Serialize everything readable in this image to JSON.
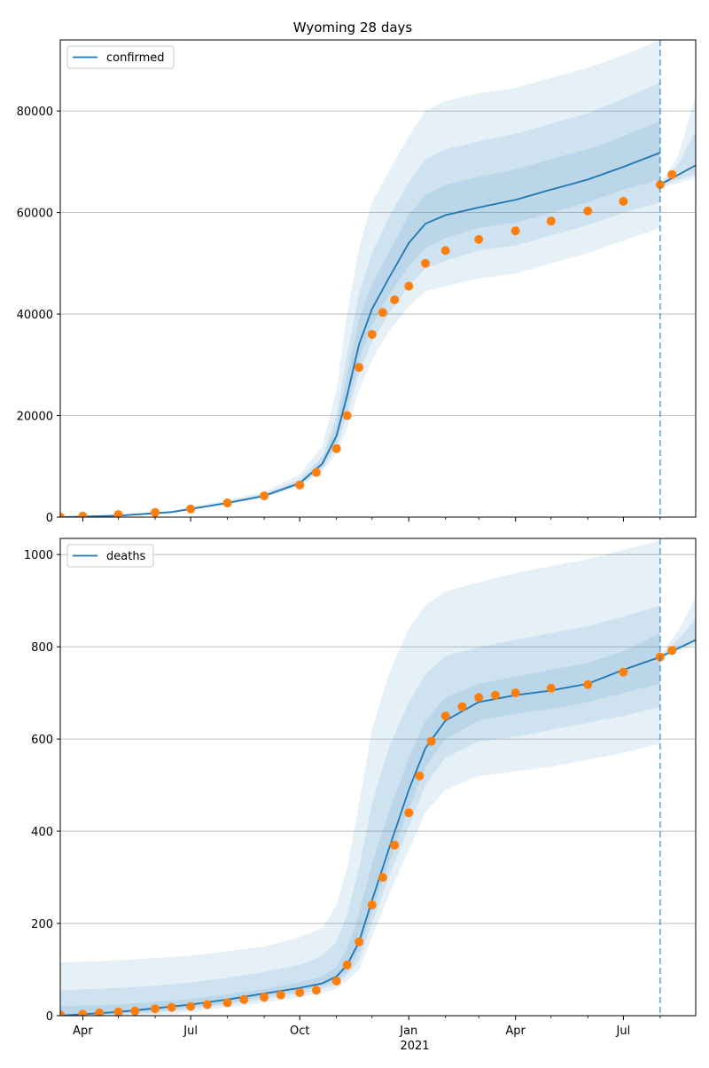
{
  "chart_data": [
    {
      "type": "line",
      "title": "Wyoming 28 days",
      "legend": {
        "entries": [
          "confirmed"
        ],
        "placement": "top-left"
      },
      "grid": {
        "y": true,
        "x": false
      },
      "x_axis": {
        "type": "date",
        "range": [
          "2020-03-13",
          "2021-08-31"
        ]
      },
      "ylim": [
        0,
        94000
      ],
      "yticks": [
        0,
        20000,
        40000,
        60000,
        80000
      ],
      "forecast_start": "2021-08-01",
      "colors": {
        "line": "#1f77b4",
        "observed": "#ff7f0e",
        "band": "#1f77b4"
      },
      "series": [
        {
          "name": "confirmed",
          "kind": "line",
          "x": [
            "2020-03-13",
            "2020-05-01",
            "2020-06-15",
            "2020-08-01",
            "2020-09-01",
            "2020-10-01",
            "2020-10-20",
            "2020-11-01",
            "2020-11-10",
            "2020-11-20",
            "2020-12-01",
            "2020-12-15",
            "2021-01-01",
            "2021-01-15",
            "2021-02-01",
            "2021-03-01",
            "2021-04-01",
            "2021-05-01",
            "2021-06-01",
            "2021-07-01",
            "2021-08-01"
          ],
          "y": [
            0,
            300,
            1000,
            2800,
            4200,
            6700,
            10500,
            16000,
            24000,
            34000,
            41000,
            47000,
            54000,
            57800,
            59500,
            61000,
            62500,
            64500,
            66500,
            69000,
            71800
          ]
        },
        {
          "name": "",
          "kind": "line",
          "tail": true,
          "x": [
            "2021-08-01",
            "2021-08-31"
          ],
          "y": [
            65500,
            69300
          ]
        },
        {
          "name": "",
          "kind": "observed",
          "x": [
            "2020-03-13",
            "2020-04-01",
            "2020-05-01",
            "2020-06-01",
            "2020-07-01",
            "2020-08-01",
            "2020-09-01",
            "2020-10-01",
            "2020-10-15",
            "2020-11-01",
            "2020-11-10",
            "2020-11-20",
            "2020-12-01",
            "2020-12-10",
            "2020-12-20",
            "2021-01-01",
            "2021-01-15",
            "2021-02-01",
            "2021-03-01",
            "2021-04-01",
            "2021-05-01",
            "2021-06-01",
            "2021-07-01",
            "2021-08-01",
            "2021-08-11"
          ],
          "y": [
            0,
            200,
            500,
            900,
            1600,
            2800,
            4200,
            6300,
            8800,
            13500,
            20000,
            29500,
            36000,
            40300,
            42800,
            45500,
            50000,
            52500,
            54700,
            56400,
            58300,
            60300,
            62200,
            65500,
            67500
          ]
        }
      ],
      "bands": [
        {
          "x": [
            "2020-03-13",
            "2020-05-01",
            "2020-06-15",
            "2020-08-01",
            "2020-09-01",
            "2020-10-01",
            "2020-10-20",
            "2020-11-01",
            "2020-11-10",
            "2020-11-20",
            "2020-12-01",
            "2020-12-15",
            "2021-01-01",
            "2021-01-15",
            "2021-02-01",
            "2021-03-01",
            "2021-04-01",
            "2021-05-01",
            "2021-06-01",
            "2021-07-01",
            "2021-08-01"
          ],
          "lower": [
            0,
            250,
            850,
            2500,
            3800,
            6100,
            9000,
            12500,
            17500,
            25000,
            31000,
            36500,
            41500,
            44500,
            45500,
            47000,
            48000,
            50000,
            52000,
            54500,
            57000
          ],
          "upper": [
            0,
            380,
            1250,
            3400,
            5000,
            8400,
            14000,
            25000,
            40000,
            53000,
            62000,
            68000,
            75000,
            80000,
            82000,
            83500,
            84500,
            86500,
            88500,
            91000,
            94000
          ]
        },
        {
          "x": [
            "2020-03-13",
            "2020-05-01",
            "2020-06-15",
            "2020-08-01",
            "2020-09-01",
            "2020-10-01",
            "2020-10-20",
            "2020-11-01",
            "2020-11-10",
            "2020-11-20",
            "2020-12-01",
            "2020-12-15",
            "2021-01-01",
            "2021-01-15",
            "2021-02-01",
            "2021-03-01",
            "2021-04-01",
            "2021-05-01",
            "2021-06-01",
            "2021-07-01",
            "2021-08-01"
          ],
          "lower": [
            0,
            270,
            900,
            2600,
            3950,
            6300,
            9500,
            13800,
            20000,
            28500,
            34500,
            40000,
            45500,
            49000,
            50500,
            52500,
            53500,
            55500,
            57500,
            60000,
            62000
          ],
          "upper": [
            0,
            340,
            1150,
            3100,
            4600,
            7500,
            12000,
            20000,
            32000,
            44000,
            52000,
            59000,
            66000,
            70500,
            72500,
            74000,
            75500,
            77500,
            79500,
            82500,
            85500
          ]
        },
        {
          "x": [
            "2020-03-13",
            "2020-05-01",
            "2020-06-15",
            "2020-08-01",
            "2020-09-01",
            "2020-10-01",
            "2020-10-20",
            "2020-11-01",
            "2020-11-10",
            "2020-11-20",
            "2020-12-01",
            "2020-12-15",
            "2021-01-01",
            "2021-01-15",
            "2021-02-01",
            "2021-03-01",
            "2021-04-01",
            "2021-05-01",
            "2021-06-01",
            "2021-07-01",
            "2021-08-01"
          ],
          "lower": [
            0,
            290,
            950,
            2700,
            4050,
            6500,
            10000,
            15000,
            22000,
            31000,
            38000,
            43500,
            49500,
            53000,
            55000,
            57000,
            58000,
            60000,
            62000,
            64500,
            66500
          ],
          "upper": [
            0,
            320,
            1080,
            2950,
            4400,
            7000,
            11200,
            18000,
            28000,
            39000,
            46000,
            52000,
            59500,
            63500,
            65500,
            67000,
            68500,
            70500,
            72500,
            75000,
            78000
          ]
        },
        {
          "tail": true,
          "x": [
            "2021-08-01",
            "2021-08-16",
            "2021-08-31"
          ],
          "lower": [
            65000,
            65800,
            66800
          ],
          "upper": [
            65500,
            71000,
            83000
          ]
        },
        {
          "tail": true,
          "x": [
            "2021-08-01",
            "2021-08-16",
            "2021-08-31"
          ],
          "lower": [
            65200,
            66500,
            67500
          ],
          "upper": [
            65500,
            69500,
            76000
          ]
        }
      ]
    },
    {
      "type": "line",
      "title": "",
      "legend": {
        "entries": [
          "deaths"
        ],
        "placement": "top-left"
      },
      "grid": {
        "y": true,
        "x": false
      },
      "x_axis": {
        "type": "date",
        "range": [
          "2020-03-13",
          "2021-08-31"
        ],
        "tick_labels": [
          "Apr",
          "Jul",
          "Oct",
          "Jan",
          "Apr",
          "Jul"
        ],
        "year_label": "2021"
      },
      "ylim": [
        0,
        1035
      ],
      "yticks": [
        0,
        200,
        400,
        600,
        800,
        1000
      ],
      "forecast_start": "2021-08-01",
      "colors": {
        "line": "#1f77b4",
        "observed": "#ff7f0e",
        "band": "#1f77b4"
      },
      "series": [
        {
          "name": "deaths",
          "kind": "line",
          "x": [
            "2020-03-13",
            "2020-05-01",
            "2020-06-01",
            "2020-07-01",
            "2020-08-01",
            "2020-09-01",
            "2020-10-01",
            "2020-10-20",
            "2020-11-01",
            "2020-11-10",
            "2020-11-20",
            "2020-12-01",
            "2020-12-15",
            "2021-01-01",
            "2021-01-15",
            "2021-02-01",
            "2021-03-01",
            "2021-04-01",
            "2021-05-01",
            "2021-06-01",
            "2021-07-01",
            "2021-08-01"
          ],
          "y": [
            0,
            8,
            16,
            24,
            35,
            48,
            60,
            70,
            85,
            110,
            160,
            250,
            360,
            490,
            580,
            640,
            680,
            695,
            705,
            720,
            750,
            778
          ]
        },
        {
          "name": "",
          "kind": "line",
          "tail": true,
          "x": [
            "2021-08-01",
            "2021-08-31"
          ],
          "y": [
            778,
            815
          ]
        },
        {
          "name": "",
          "kind": "observed",
          "x": [
            "2020-03-13",
            "2020-04-01",
            "2020-04-15",
            "2020-05-01",
            "2020-05-15",
            "2020-06-01",
            "2020-06-15",
            "2020-07-01",
            "2020-07-15",
            "2020-08-01",
            "2020-08-15",
            "2020-09-01",
            "2020-09-15",
            "2020-10-01",
            "2020-10-15",
            "2020-11-01",
            "2020-11-10",
            "2020-11-20",
            "2020-12-01",
            "2020-12-10",
            "2020-12-20",
            "2021-01-01",
            "2021-01-10",
            "2021-01-20",
            "2021-02-01",
            "2021-02-15",
            "2021-03-01",
            "2021-03-15",
            "2021-04-01",
            "2021-05-01",
            "2021-06-01",
            "2021-07-01",
            "2021-08-01",
            "2021-08-11"
          ],
          "y": [
            2,
            3,
            6,
            8,
            10,
            15,
            18,
            20,
            24,
            28,
            35,
            40,
            45,
            50,
            55,
            75,
            110,
            160,
            240,
            300,
            370,
            440,
            520,
            595,
            650,
            670,
            690,
            695,
            700,
            710,
            718,
            745,
            778,
            792
          ]
        }
      ],
      "bands": [
        {
          "x": [
            "2020-03-13",
            "2020-05-01",
            "2020-06-01",
            "2020-07-01",
            "2020-08-01",
            "2020-09-01",
            "2020-10-01",
            "2020-10-20",
            "2020-11-01",
            "2020-11-10",
            "2020-11-20",
            "2020-12-01",
            "2020-12-15",
            "2021-01-01",
            "2021-01-15",
            "2021-02-01",
            "2021-03-01",
            "2021-04-01",
            "2021-05-01",
            "2021-06-01",
            "2021-07-01",
            "2021-08-01"
          ],
          "lower": [
            0,
            0,
            2,
            8,
            18,
            28,
            40,
            50,
            58,
            75,
            100,
            170,
            260,
            360,
            440,
            490,
            520,
            530,
            540,
            555,
            570,
            590
          ],
          "upper": [
            115,
            120,
            125,
            130,
            140,
            150,
            170,
            190,
            240,
            320,
            460,
            620,
            740,
            840,
            890,
            920,
            940,
            960,
            975,
            990,
            1010,
            1030
          ]
        },
        {
          "x": [
            "2020-03-13",
            "2020-05-01",
            "2020-06-01",
            "2020-07-01",
            "2020-08-01",
            "2020-09-01",
            "2020-10-01",
            "2020-10-20",
            "2020-11-01",
            "2020-11-10",
            "2020-11-20",
            "2020-12-01",
            "2020-12-15",
            "2021-01-01",
            "2021-01-15",
            "2021-02-01",
            "2021-03-01",
            "2021-04-01",
            "2021-05-01",
            "2021-06-01",
            "2021-07-01",
            "2021-08-01"
          ],
          "lower": [
            0,
            2,
            6,
            14,
            24,
            36,
            48,
            58,
            68,
            88,
            120,
            200,
            300,
            410,
            500,
            560,
            595,
            605,
            620,
            635,
            650,
            670
          ],
          "upper": [
            55,
            60,
            65,
            72,
            82,
            95,
            110,
            130,
            160,
            220,
            320,
            460,
            580,
            680,
            740,
            780,
            800,
            815,
            830,
            845,
            865,
            890
          ]
        },
        {
          "x": [
            "2020-03-13",
            "2020-05-01",
            "2020-06-01",
            "2020-07-01",
            "2020-08-01",
            "2020-09-01",
            "2020-10-01",
            "2020-10-20",
            "2020-11-01",
            "2020-11-10",
            "2020-11-20",
            "2020-12-01",
            "2020-12-15",
            "2021-01-01",
            "2021-01-15",
            "2021-02-01",
            "2021-03-01",
            "2021-04-01",
            "2021-05-01",
            "2021-06-01",
            "2021-07-01",
            "2021-08-01"
          ],
          "lower": [
            0,
            4,
            10,
            18,
            28,
            42,
            54,
            64,
            76,
            96,
            140,
            225,
            330,
            450,
            540,
            600,
            640,
            655,
            665,
            680,
            700,
            720
          ],
          "upper": [
            20,
            24,
            30,
            36,
            46,
            58,
            72,
            85,
            105,
            145,
            220,
            330,
            440,
            560,
            640,
            690,
            720,
            735,
            750,
            765,
            790,
            830
          ]
        },
        {
          "tail": true,
          "x": [
            "2021-08-01",
            "2021-08-16",
            "2021-08-31"
          ],
          "lower": [
            775,
            790,
            805
          ],
          "upper": [
            780,
            835,
            905
          ]
        },
        {
          "tail": true,
          "x": [
            "2021-08-01",
            "2021-08-16",
            "2021-08-31"
          ],
          "lower": [
            777,
            795,
            810
          ],
          "upper": [
            780,
            815,
            860
          ]
        }
      ]
    }
  ]
}
